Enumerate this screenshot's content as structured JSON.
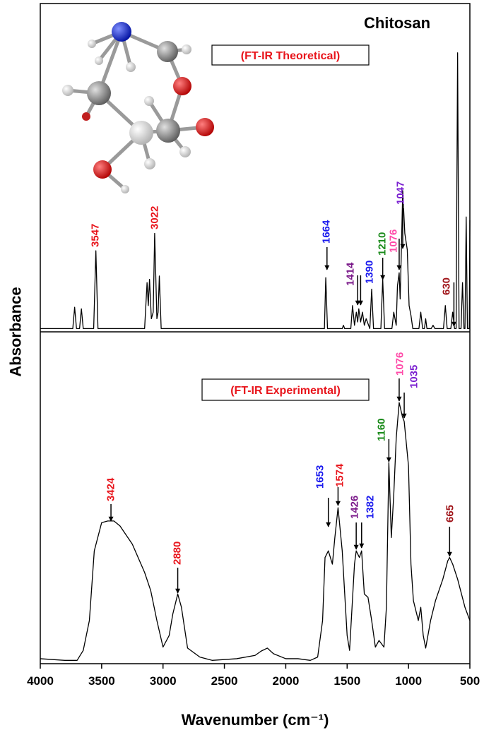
{
  "chart_data": {
    "type": "line",
    "title": "Chitosan",
    "x_label": "Wavenumber (cm⁻¹)",
    "y_label": "Absorbance",
    "xlim": [
      4000,
      500
    ],
    "xticks": [
      4000,
      3500,
      3000,
      2500,
      2000,
      1500,
      1000,
      500
    ],
    "panels": [
      {
        "subtitle": "(FT-IR Theoretical)",
        "ylim": [
          0,
          100
        ],
        "series": [
          {
            "color": "#000000",
            "x": [
              4000,
              3735,
              3720,
              3705,
              3680,
              3665,
              3650,
              3565,
              3547,
              3530,
              3150,
              3130,
              3120,
              3110,
              3095,
              3080,
              3068,
              3050,
              3040,
              3030,
              3015,
              1685,
              1674,
              1660,
              1540,
              1530,
              1520,
              1470,
              1456,
              1440,
              1425,
              1414,
              1405,
              1390,
              1375,
              1360,
              1345,
              1315,
              1300,
              1285,
              1225,
              1210,
              1195,
              1135,
              1120,
              1100,
              1090,
              1076,
              1068,
              1060,
              1047,
              1030,
              1010,
              995,
              980,
              965,
              915,
              900,
              885,
              870,
              860,
              850,
              815,
              800,
              785,
              715,
              700,
              685,
              655,
              640,
              625,
              612,
              600,
              588,
              572,
              560,
              548,
              540,
              530,
              520,
              505,
              500
            ],
            "values": [
              1,
              1,
              7.5,
              1,
              1,
              7,
              1,
              1,
              24.7,
              1,
              1,
              15,
              8,
              16,
              4,
              6,
              30,
              4,
              6,
              17,
              1,
              1,
              16.5,
              1,
              1,
              2,
              1,
              1,
              8,
              2,
              6,
              3,
              7,
              3,
              6,
              2,
              4,
              1,
              13,
              1,
              1,
              16,
              1,
              1,
              6,
              2,
              14,
              18,
              10,
              22,
              43,
              30,
              25,
              8,
              5,
              1,
              1,
              6,
              1,
              1,
              4,
              1,
              1,
              2,
              1,
              1,
              8,
              1,
              1,
              6,
              1,
              1,
              85,
              1,
              1,
              15,
              1,
              1,
              35,
              1,
              1,
              34
            ]
          }
        ],
        "annotations": [
          {
            "value": 3547,
            "color": "#e8141b"
          },
          {
            "value": 3022,
            "color": "#e8141b"
          },
          {
            "value": 1664,
            "color": "#1a1aee"
          },
          {
            "value": 1414,
            "color": "#7b1a8a"
          },
          {
            "value": 1390,
            "color": "#1a1aee"
          },
          {
            "value": 1210,
            "color": "#1a8a1a"
          },
          {
            "value": 1076,
            "color": "#ff4aa8"
          },
          {
            "value": 1047,
            "color": "#7a1fd0"
          },
          {
            "value": 630,
            "color": "#a0151a"
          }
        ]
      },
      {
        "subtitle": "(FT-IR Experimental)",
        "ylim": [
          0,
          100
        ],
        "series": [
          {
            "color": "#000000",
            "x": [
              4000,
              3800,
              3700,
              3650,
              3600,
              3560,
              3500,
              3450,
              3400,
              3350,
              3250,
              3150,
              3100,
              3050,
              3000,
              2950,
              2920,
              2880,
              2850,
              2800,
              2700,
              2600,
              2400,
              2250,
              2200,
              2150,
              2100,
              2000,
              1900,
              1800,
              1740,
              1700,
              1680,
              1653,
              1620,
              1600,
              1574,
              1540,
              1500,
              1480,
              1440,
              1426,
              1400,
              1382,
              1360,
              1330,
              1300,
              1270,
              1240,
              1200,
              1180,
              1160,
              1140,
              1120,
              1100,
              1076,
              1050,
              1035,
              1000,
              980,
              960,
              920,
              900,
              880,
              860,
              820,
              780,
              720,
              680,
              665,
              640,
              600,
              540,
              500
            ],
            "values": [
              1.5,
              1,
              1,
              4,
              13,
              34,
              42.5,
              43,
              43,
              41.5,
              36,
              27.5,
              22,
              13,
              5,
              8.5,
              15,
              21,
              17,
              4.7,
              2,
              1,
              1.5,
              2.5,
              3.8,
              4.7,
              3,
              1.5,
              1.5,
              1,
              2,
              13,
              32,
              34,
              30,
              38,
              47,
              34,
              8.5,
              4,
              30,
              34,
              32,
              34,
              21,
              20,
              13,
              5,
              7,
              5,
              17,
              60.6,
              38,
              51,
              68,
              78.7,
              74.5,
              73,
              59.6,
              30,
              19,
              13,
              17,
              8.5,
              4.7,
              13,
              19,
              25.5,
              31,
              32,
              30,
              25.5,
              17,
              13
            ]
          }
        ],
        "annotations": [
          {
            "value": 3424,
            "color": "#e8141b"
          },
          {
            "value": 2880,
            "color": "#e8141b"
          },
          {
            "value": 1653,
            "color": "#1a1aee"
          },
          {
            "value": 1574,
            "color": "#e8141b"
          },
          {
            "value": 1426,
            "color": "#7b1a8a"
          },
          {
            "value": 1382,
            "color": "#1a1aee"
          },
          {
            "value": 1160,
            "color": "#1a8a1a"
          },
          {
            "value": 1076,
            "color": "#ff4aa8"
          },
          {
            "value": 1035,
            "color": "#7a1fd0"
          },
          {
            "value": 665,
            "color": "#a0151a"
          }
        ]
      }
    ]
  }
}
